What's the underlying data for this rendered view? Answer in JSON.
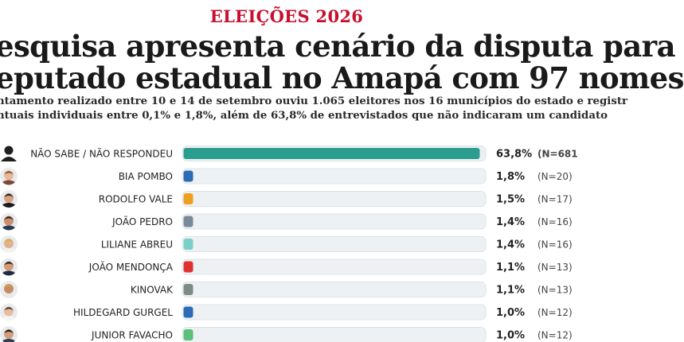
{
  "header": {
    "kicker": "ELEIÇÕES 2026",
    "headline_line1": "esquisa apresenta cenário da disputa para",
    "headline_line2": "eputado estadual no Amapá com 97 nomes",
    "sub_line1": "ntamento realizado entre 10 e 14 de setembro ouviu 1.065 eleitores nos 16 municípios do estado e registr",
    "sub_line2": "ntuais individuais entre 0,1% e 1,8%, além de 63,8% de entrevistados que não indicaram um candidato"
  },
  "colors": {
    "kicker": "#c8102e",
    "track": "#eef1f4",
    "track_border": "#dde2e8"
  },
  "chart_data": {
    "type": "bar",
    "orientation": "horizontal",
    "xlim": [
      0,
      63.8
    ],
    "items": [
      {
        "name": "NÃO SABE / NÃO RESPONDEU",
        "value": 63.8,
        "pct_label": "63,8%",
        "n_label": "(N=681",
        "color": "#2a9d8f",
        "avatar": "generic-user-icon"
      },
      {
        "name": "BIA POMBO",
        "value": 1.8,
        "pct_label": "1,8%",
        "n_label": "(N=20)",
        "color": "#2e6bb5",
        "avatar": "candidate-photo"
      },
      {
        "name": "RODOLFO VALE",
        "value": 1.5,
        "pct_label": "1,5%",
        "n_label": "(N=17)",
        "color": "#f0a020",
        "avatar": "candidate-photo"
      },
      {
        "name": "JOÃO PEDRO",
        "value": 1.4,
        "pct_label": "1,4%",
        "n_label": "(N=16)",
        "color": "#7b8a9a",
        "avatar": "candidate-photo"
      },
      {
        "name": "LILIANE ABREU",
        "value": 1.4,
        "pct_label": "1,4%",
        "n_label": "(N=16)",
        "color": "#7ccfc9",
        "avatar": "candidate-photo"
      },
      {
        "name": "JOÃO MENDONÇA",
        "value": 1.1,
        "pct_label": "1,1%",
        "n_label": "(N=13)",
        "color": "#e03131",
        "avatar": "candidate-photo"
      },
      {
        "name": "KINOVAK",
        "value": 1.1,
        "pct_label": "1,1%",
        "n_label": "(N=13)",
        "color": "#7f8c85",
        "avatar": "candidate-photo"
      },
      {
        "name": "HILDEGARD GURGEL",
        "value": 1.0,
        "pct_label": "1,0%",
        "n_label": "(N=12)",
        "color": "#2e6bb5",
        "avatar": "candidate-photo"
      },
      {
        "name": "JUNIOR FAVACHO",
        "value": 1.0,
        "pct_label": "1,0%",
        "n_label": "(N=12)",
        "color": "#5cbf7a",
        "avatar": "candidate-photo"
      }
    ]
  }
}
